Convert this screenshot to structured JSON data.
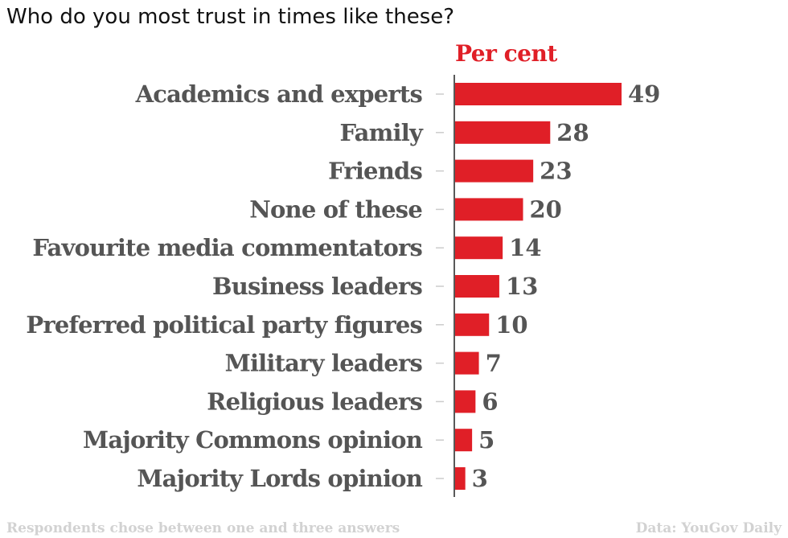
{
  "chart_data": {
    "type": "bar",
    "orientation": "horizontal",
    "title": "Who do you most trust in times like these?",
    "unit_label": "Per cent",
    "categories": [
      "Academics and experts",
      "Family",
      "Friends",
      "None of these",
      "Favourite media commentators",
      "Business leaders",
      "Preferred political party figures",
      "Military leaders",
      "Religious leaders",
      "Majority Commons opinion",
      "Majority Lords opinion"
    ],
    "values": [
      49,
      28,
      23,
      20,
      14,
      13,
      10,
      7,
      6,
      5,
      3
    ],
    "bar_color": "#e01f27",
    "label_color": "#555555",
    "footnote_left": "Respondents chose between one and three answers",
    "footnote_right": "Data: YouGov Daily",
    "grid": false
  }
}
